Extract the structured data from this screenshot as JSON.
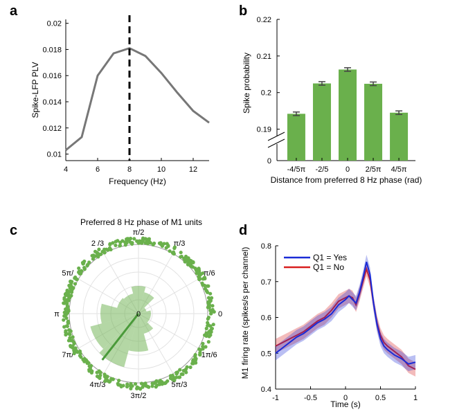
{
  "panels": {
    "a": {
      "label": "a"
    },
    "b": {
      "label": "b"
    },
    "c": {
      "label": "c"
    },
    "d": {
      "label": "d"
    }
  },
  "chart_data": [
    {
      "panel": "a",
      "type": "line",
      "title": "",
      "xlabel": "Frequency (Hz)",
      "ylabel": "Spike-LFP PLV",
      "xlim": [
        4,
        13
      ],
      "ylim": [
        0.0095,
        0.0203
      ],
      "xticks": [
        "4",
        "6",
        "8",
        "10",
        "12"
      ],
      "xtick_values": [
        4,
        6,
        8,
        10,
        12
      ],
      "yticks": [
        "0.01",
        "0.012",
        "0.014",
        "0.016",
        "0.018",
        "0.02"
      ],
      "ytick_values": [
        0.01,
        0.012,
        0.014,
        0.016,
        0.018,
        0.02
      ],
      "color": "#777777",
      "x": [
        4,
        5,
        6,
        7,
        8,
        9,
        10,
        11,
        12,
        13
      ],
      "y": [
        0.0103,
        0.0113,
        0.016,
        0.0177,
        0.0181,
        0.0175,
        0.0162,
        0.0147,
        0.0133,
        0.0124
      ],
      "vline": {
        "x": 8,
        "style": "dashed",
        "color": "#000000"
      }
    },
    {
      "panel": "b",
      "type": "bar",
      "title": "",
      "xlabel": "Distance from preferred 8 Hz phase (rad)",
      "ylabel": "Spike probability",
      "categories": [
        "-4/5π",
        "-2/5",
        "0",
        "2/5π",
        "4/5π"
      ],
      "values": [
        0.1942,
        0.2025,
        0.2063,
        0.2024,
        0.1945
      ],
      "errors": [
        0.0003,
        0.0003,
        0.0003,
        0.0003,
        0.0003
      ],
      "yticks": [
        "0",
        "0.19",
        "0.2",
        "0.21",
        "0.22"
      ],
      "ytick_values": [
        0.19,
        0.2,
        0.21,
        0.22
      ],
      "ylim": [
        0.185,
        0.22
      ],
      "axis_break": true,
      "color": "#6ab04c"
    },
    {
      "panel": "c",
      "type": "polar",
      "title": "Preferred 8 Hz phase of M1 units",
      "angle_labels": [
        "0",
        "π/6",
        "π/3",
        "π/2",
        "2 /3",
        "5π/",
        "π",
        "7π/",
        "4π/3",
        "3π/2",
        "5π/3",
        "1π/6"
      ],
      "angle_degrees": [
        0,
        30,
        60,
        90,
        120,
        150,
        180,
        210,
        240,
        270,
        300,
        330
      ],
      "center_label": "0",
      "rose_bins_deg": [
        0,
        30,
        60,
        90,
        120,
        150,
        180,
        210,
        240,
        270,
        300,
        330
      ],
      "rose_values": [
        0.18,
        0.12,
        0.32,
        0.4,
        0.3,
        0.32,
        0.55,
        0.72,
        0.8,
        0.55,
        0.3,
        0.18
      ],
      "mean_vector": {
        "angle_deg": 232,
        "length": 0.85
      },
      "unit_radius": 1.05,
      "n_units": 420,
      "color": "#6ab04c"
    },
    {
      "panel": "d",
      "type": "line",
      "title": "",
      "xlabel": "Time (s)",
      "ylabel": "M1 firing rate (spikes/s per channel)",
      "xlim": [
        -1,
        1
      ],
      "ylim": [
        0.4,
        0.8
      ],
      "xticks": [
        "-1",
        "-0.5",
        "0",
        "0.5",
        "1"
      ],
      "xtick_values": [
        -1,
        -0.5,
        0,
        0.5,
        1
      ],
      "yticks": [
        "0.4",
        "0.5",
        "0.6",
        "0.7",
        "0.8"
      ],
      "ytick_values": [
        0.4,
        0.5,
        0.6,
        0.7,
        0.8
      ],
      "legend_position": "top-left",
      "series": [
        {
          "name": "Q1 = Yes",
          "color": "#1a2bd6",
          "band": 0.02,
          "x": [
            -1,
            -0.9,
            -0.8,
            -0.7,
            -0.6,
            -0.5,
            -0.4,
            -0.3,
            -0.2,
            -0.1,
            0,
            0.05,
            0.1,
            0.15,
            0.2,
            0.25,
            0.3,
            0.35,
            0.4,
            0.45,
            0.5,
            0.55,
            0.6,
            0.7,
            0.8,
            0.9,
            1.0
          ],
          "y": [
            0.5,
            0.515,
            0.53,
            0.545,
            0.555,
            0.57,
            0.585,
            0.595,
            0.61,
            0.635,
            0.65,
            0.66,
            0.65,
            0.64,
            0.67,
            0.71,
            0.755,
            0.72,
            0.64,
            0.58,
            0.54,
            0.52,
            0.51,
            0.495,
            0.485,
            0.47,
            0.475
          ]
        },
        {
          "name": "Q1 = No",
          "color": "#d81e1e",
          "band": 0.02,
          "x": [
            -1,
            -0.9,
            -0.8,
            -0.7,
            -0.6,
            -0.5,
            -0.4,
            -0.3,
            -0.2,
            -0.1,
            0,
            0.05,
            0.1,
            0.15,
            0.2,
            0.25,
            0.3,
            0.35,
            0.4,
            0.45,
            0.5,
            0.55,
            0.6,
            0.7,
            0.8,
            0.9,
            1.0
          ],
          "y": [
            0.52,
            0.53,
            0.54,
            0.55,
            0.56,
            0.575,
            0.59,
            0.6,
            0.62,
            0.645,
            0.655,
            0.66,
            0.655,
            0.635,
            0.665,
            0.7,
            0.735,
            0.705,
            0.64,
            0.585,
            0.55,
            0.53,
            0.52,
            0.505,
            0.49,
            0.465,
            0.455
          ]
        }
      ]
    }
  ]
}
